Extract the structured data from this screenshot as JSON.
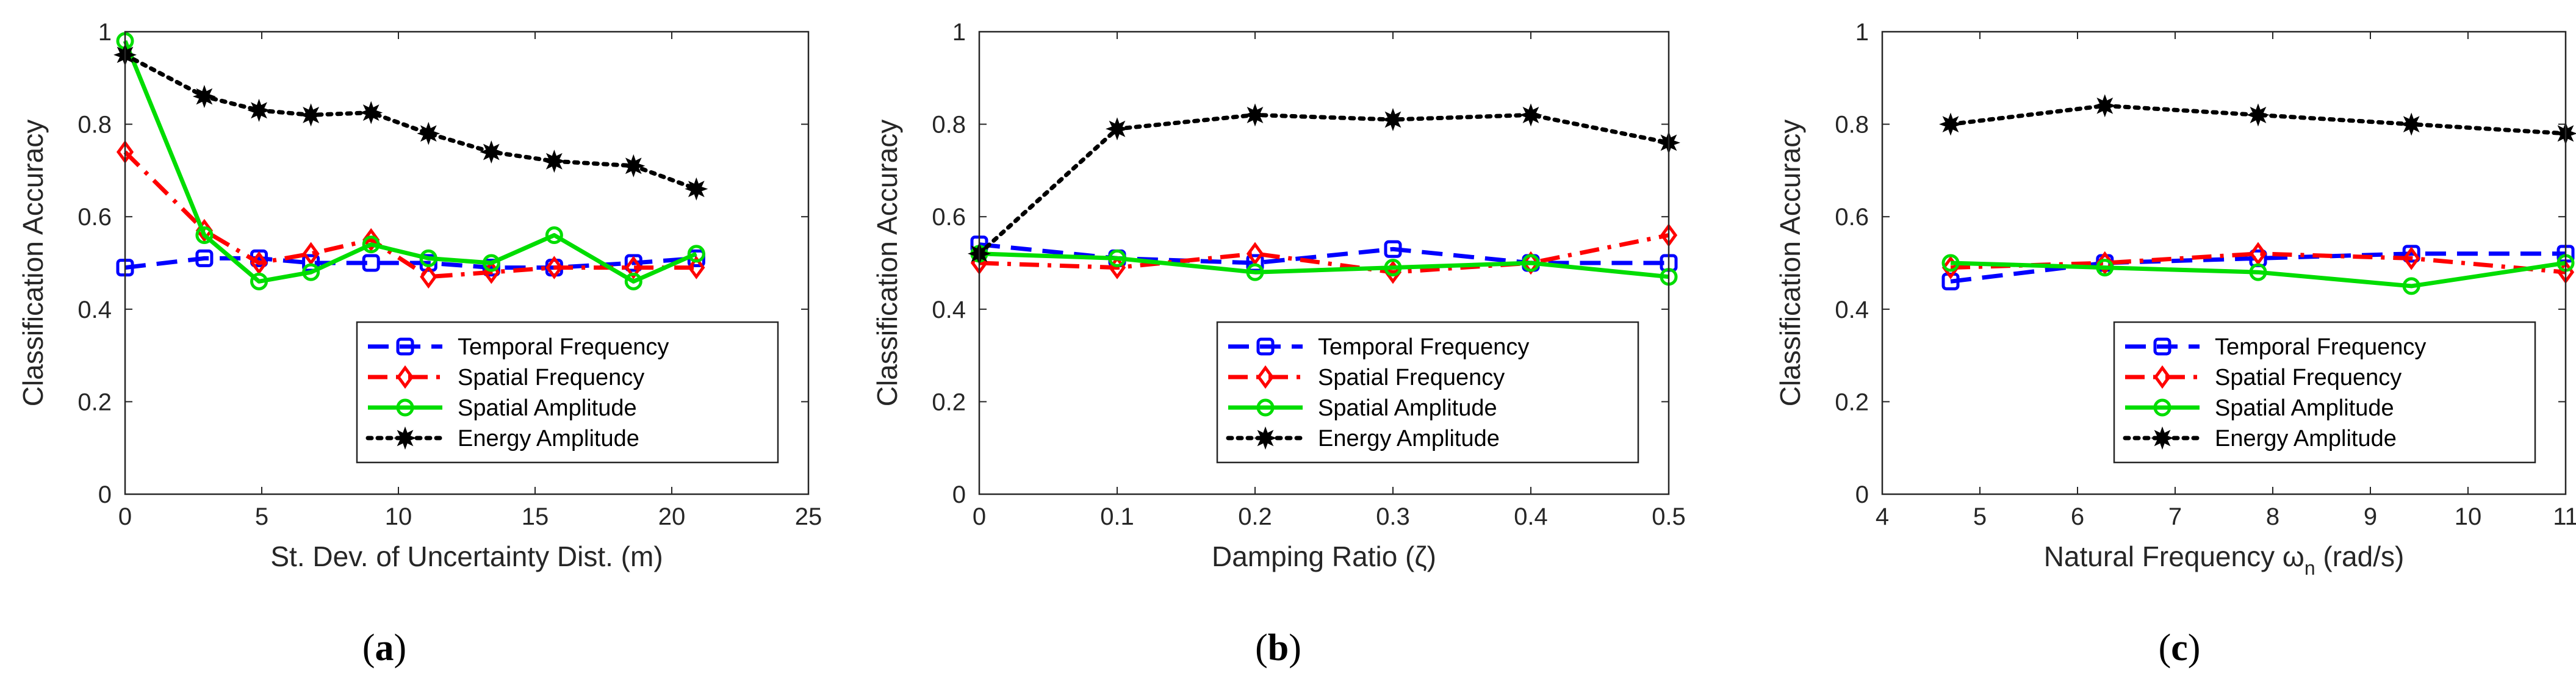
{
  "figure": {
    "panels": [
      {
        "letter": "a",
        "open": "(",
        "close": ")"
      },
      {
        "letter": "b",
        "open": "(",
        "close": ")"
      },
      {
        "letter": "c",
        "open": "(",
        "close": ")"
      }
    ]
  },
  "chart_data": [
    {
      "type": "line",
      "title": "",
      "xlabel": "St. Dev. of Uncertainty Dist. (m)",
      "ylabel": "Classification Accuracy",
      "xlim": [
        0,
        25
      ],
      "ylim": [
        0,
        1
      ],
      "xticks": [
        0,
        5,
        10,
        15,
        20,
        25
      ],
      "xtick_labels": [
        "0",
        "5",
        "10",
        "15",
        "20",
        "25"
      ],
      "yticks": [
        0,
        0.2,
        0.4,
        0.6,
        0.8,
        1
      ],
      "ytick_labels": [
        "0",
        "0.2",
        "0.4",
        "0.6",
        "0.8",
        "1"
      ],
      "legend": "bottom-right",
      "series": [
        {
          "name": "Temporal Frequency",
          "color": "#0000ff",
          "dash": "dashed",
          "marker": "square",
          "x": [
            0,
            2.9,
            4.9,
            6.8,
            9.0,
            11.1,
            13.4,
            15.7,
            18.6,
            20.9
          ],
          "y": [
            0.49,
            0.51,
            0.51,
            0.5,
            0.5,
            0.5,
            0.49,
            0.49,
            0.5,
            0.51
          ]
        },
        {
          "name": "Spatial Frequency",
          "color": "#ff0000",
          "dash": "dashdot",
          "marker": "diamond",
          "x": [
            0,
            2.9,
            4.9,
            6.8,
            9.0,
            11.1,
            13.4,
            15.7,
            18.6,
            20.9
          ],
          "y": [
            0.74,
            0.57,
            0.5,
            0.52,
            0.55,
            0.47,
            0.48,
            0.49,
            0.49,
            0.49
          ]
        },
        {
          "name": "Spatial Amplitude",
          "color": "#00dd00",
          "dash": "solid",
          "marker": "circle",
          "x": [
            0,
            2.9,
            4.9,
            6.8,
            9.0,
            11.1,
            13.4,
            15.7,
            18.6,
            20.9
          ],
          "y": [
            0.98,
            0.56,
            0.46,
            0.48,
            0.54,
            0.51,
            0.5,
            0.56,
            0.46,
            0.52
          ]
        },
        {
          "name": "Energy Amplitude",
          "color": "#000000",
          "dash": "dotted",
          "marker": "star",
          "x": [
            0,
            2.9,
            4.9,
            6.8,
            9.0,
            11.1,
            13.4,
            15.7,
            18.6,
            20.9
          ],
          "y": [
            0.95,
            0.86,
            0.83,
            0.82,
            0.825,
            0.78,
            0.74,
            0.72,
            0.71,
            0.66
          ]
        }
      ]
    },
    {
      "type": "line",
      "title": "",
      "xlabel": "Damping Ratio (ζ)",
      "ylabel": "Classification Accuracy",
      "xlim": [
        0,
        0.5
      ],
      "ylim": [
        0,
        1
      ],
      "xticks": [
        0,
        0.1,
        0.2,
        0.3,
        0.4,
        0.5
      ],
      "xtick_labels": [
        "0",
        "0.1",
        "0.2",
        "0.3",
        "0.4",
        "0.5"
      ],
      "yticks": [
        0,
        0.2,
        0.4,
        0.6,
        0.8,
        1
      ],
      "ytick_labels": [
        "0",
        "0.2",
        "0.4",
        "0.6",
        "0.8",
        "1"
      ],
      "legend": "bottom-right",
      "series": [
        {
          "name": "Temporal Frequency",
          "color": "#0000ff",
          "dash": "dashed",
          "marker": "square",
          "x": [
            0,
            0.1,
            0.2,
            0.3,
            0.4,
            0.5
          ],
          "y": [
            0.54,
            0.51,
            0.5,
            0.53,
            0.5,
            0.5
          ]
        },
        {
          "name": "Spatial Frequency",
          "color": "#ff0000",
          "dash": "dashdot",
          "marker": "diamond",
          "x": [
            0,
            0.1,
            0.2,
            0.3,
            0.4,
            0.5
          ],
          "y": [
            0.5,
            0.49,
            0.52,
            0.48,
            0.5,
            0.56
          ]
        },
        {
          "name": "Spatial Amplitude",
          "color": "#00dd00",
          "dash": "solid",
          "marker": "circle",
          "x": [
            0,
            0.1,
            0.2,
            0.3,
            0.4,
            0.5
          ],
          "y": [
            0.52,
            0.51,
            0.48,
            0.49,
            0.5,
            0.47
          ]
        },
        {
          "name": "Energy Amplitude",
          "color": "#000000",
          "dash": "dotted",
          "marker": "star",
          "x": [
            0,
            0.1,
            0.2,
            0.3,
            0.4,
            0.5
          ],
          "y": [
            0.52,
            0.79,
            0.82,
            0.81,
            0.82,
            0.76
          ]
        }
      ]
    },
    {
      "type": "line",
      "title": "",
      "xlabel": "Natural Frequency ω",
      "xlabel_sub": "n",
      "xlabel_suffix": " (rad/s)",
      "ylabel": "Classification Accuracy",
      "xlim": [
        4,
        11
      ],
      "ylim": [
        0,
        1
      ],
      "xticks": [
        4,
        5,
        6,
        7,
        8,
        9,
        10,
        11
      ],
      "xtick_labels": [
        "4",
        "5",
        "6",
        "7",
        "8",
        "9",
        "10",
        "11"
      ],
      "yticks": [
        0,
        0.2,
        0.4,
        0.6,
        0.8,
        1
      ],
      "ytick_labels": [
        "0",
        "0.2",
        "0.4",
        "0.6",
        "0.8",
        "1"
      ],
      "legend": "bottom-right",
      "series": [
        {
          "name": "Temporal Frequency",
          "color": "#0000ff",
          "dash": "dashed",
          "marker": "square",
          "x": [
            4.7,
            6.28,
            7.85,
            9.42,
            11.0
          ],
          "y": [
            0.46,
            0.5,
            0.51,
            0.52,
            0.52
          ]
        },
        {
          "name": "Spatial Frequency",
          "color": "#ff0000",
          "dash": "dashdot",
          "marker": "diamond",
          "x": [
            4.7,
            6.28,
            7.85,
            9.42,
            11.0
          ],
          "y": [
            0.49,
            0.5,
            0.52,
            0.51,
            0.48
          ]
        },
        {
          "name": "Spatial Amplitude",
          "color": "#00dd00",
          "dash": "solid",
          "marker": "circle",
          "x": [
            4.7,
            6.28,
            7.85,
            9.42,
            11.0
          ],
          "y": [
            0.5,
            0.49,
            0.48,
            0.45,
            0.5
          ]
        },
        {
          "name": "Energy Amplitude",
          "color": "#000000",
          "dash": "dotted",
          "marker": "star",
          "x": [
            4.7,
            6.28,
            7.85,
            9.42,
            11.0
          ],
          "y": [
            0.8,
            0.84,
            0.82,
            0.8,
            0.78
          ]
        }
      ]
    }
  ]
}
